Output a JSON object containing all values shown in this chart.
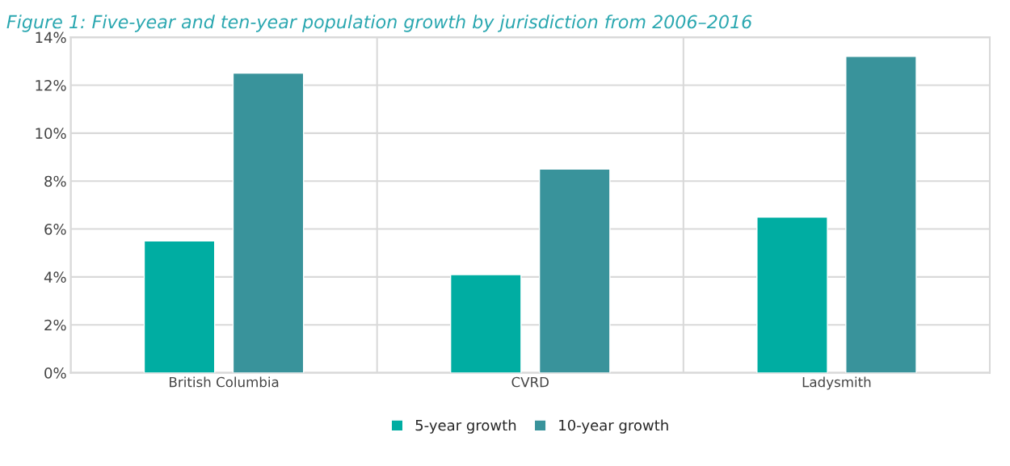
{
  "chart_data": {
    "type": "bar",
    "title": "Figure 1: Five-year and ten-year population growth by jurisdiction from 2006–2016",
    "categories": [
      "British Columbia",
      "CVRD",
      "Ladysmith"
    ],
    "series": [
      {
        "name": "5-year growth",
        "color": "#00ada2",
        "values": [
          5.5,
          4.1,
          6.5
        ]
      },
      {
        "name": "10-year growth",
        "color": "#39939b",
        "values": [
          12.5,
          8.5,
          13.2
        ]
      }
    ],
    "ylim": [
      0,
      14
    ],
    "yticks": [
      {
        "value": 0,
        "label": "0%"
      },
      {
        "value": 2,
        "label": "2%"
      },
      {
        "value": 4,
        "label": "4%"
      },
      {
        "value": 6,
        "label": "6%"
      },
      {
        "value": 8,
        "label": "8%"
      },
      {
        "value": 10,
        "label": "10%"
      },
      {
        "value": 12,
        "label": "12%"
      },
      {
        "value": 14,
        "label": "14%"
      }
    ],
    "grid": true,
    "legend": "bottom"
  }
}
